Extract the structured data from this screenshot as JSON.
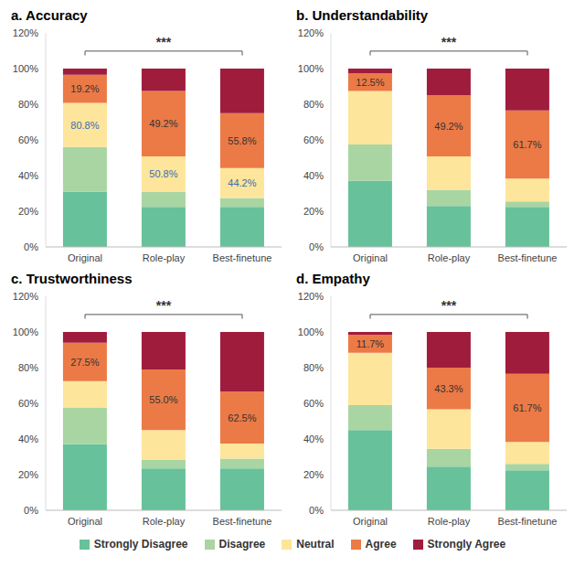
{
  "chart_data": [
    {
      "type": "bar",
      "title": "a. Accuracy",
      "stacked": true,
      "grid": false,
      "categories": [
        "Original",
        "Role-play",
        "Best-finetune"
      ],
      "ylim": [
        0,
        120
      ],
      "yticks": [
        {
          "value": 0,
          "label": "0%"
        },
        {
          "value": 20,
          "label": "20%"
        },
        {
          "value": 40,
          "label": "40%"
        },
        {
          "value": 60,
          "label": "60%"
        },
        {
          "value": 80,
          "label": "80%"
        },
        {
          "value": 100,
          "label": "100%"
        },
        {
          "value": 120,
          "label": "120%"
        }
      ],
      "series": [
        {
          "name": "Strongly Disagree",
          "color": "#67c19a",
          "values": [
            31,
            22.5,
            22.5
          ]
        },
        {
          "name": "Disagree",
          "color": "#a9d5a3",
          "values": [
            25,
            8.5,
            5
          ]
        },
        {
          "name": "Neutral",
          "color": "#fde59b",
          "values": [
            24.8,
            19.8,
            16.7
          ]
        },
        {
          "name": "Agree",
          "color": "#eb7a46",
          "values": [
            15.7,
            36.7,
            30.8
          ]
        },
        {
          "name": "Strongly Agree",
          "color": "#a01c3d",
          "values": [
            3.5,
            12.5,
            25
          ]
        }
      ],
      "annotations": [
        {
          "text": "19.2%",
          "category": "Original",
          "series": "Agree",
          "color": "#333333"
        },
        {
          "text": "49.2%",
          "category": "Role-play",
          "series": "Agree",
          "color": "#333333"
        },
        {
          "text": "55.8%",
          "category": "Best-finetune",
          "series": "Agree",
          "color": "#333333"
        },
        {
          "text": "80.8%",
          "category": "Original",
          "series": "Neutral",
          "color": "#3b6db3"
        },
        {
          "text": "50.8%",
          "category": "Role-play",
          "series": "Neutral",
          "color": "#3b6db3"
        },
        {
          "text": "44.2%",
          "category": "Best-finetune",
          "series": "Neutral",
          "color": "#3b6db3"
        }
      ],
      "significance": {
        "text": "***",
        "from": "Original",
        "to": "Best-finetune"
      }
    },
    {
      "type": "bar",
      "title": "b. Understandability",
      "stacked": true,
      "grid": false,
      "categories": [
        "Original",
        "Role-play",
        "Best-finetune"
      ],
      "ylim": [
        0,
        120
      ],
      "yticks": [
        {
          "value": 0,
          "label": "0%"
        },
        {
          "value": 20,
          "label": "20%"
        },
        {
          "value": 40,
          "label": "40%"
        },
        {
          "value": 60,
          "label": "60%"
        },
        {
          "value": 80,
          "label": "80%"
        },
        {
          "value": 100,
          "label": "100%"
        },
        {
          "value": 120,
          "label": "120%"
        }
      ],
      "series": [
        {
          "name": "Strongly Disagree",
          "color": "#67c19a",
          "values": [
            37,
            23,
            22.5
          ]
        },
        {
          "name": "Disagree",
          "color": "#a9d5a3",
          "values": [
            20.5,
            9,
            3
          ]
        },
        {
          "name": "Neutral",
          "color": "#fde59b",
          "values": [
            30,
            18.8,
            12.8
          ]
        },
        {
          "name": "Agree",
          "color": "#eb7a46",
          "values": [
            10,
            34.2,
            38.2
          ]
        },
        {
          "name": "Strongly Agree",
          "color": "#a01c3d",
          "values": [
            2.5,
            15,
            23.5
          ]
        }
      ],
      "annotations": [
        {
          "text": "12.5%",
          "category": "Original",
          "series": "Agree",
          "color": "#333333"
        },
        {
          "text": "49.2%",
          "category": "Role-play",
          "series": "Agree",
          "color": "#333333"
        },
        {
          "text": "61.7%",
          "category": "Best-finetune",
          "series": "Agree",
          "color": "#333333"
        }
      ],
      "significance": {
        "text": "***",
        "from": "Original",
        "to": "Best-finetune"
      }
    },
    {
      "type": "bar",
      "title": "c. Trustworthiness",
      "stacked": true,
      "grid": false,
      "categories": [
        "Original",
        "Role-play",
        "Best-finetune"
      ],
      "ylim": [
        0,
        120
      ],
      "yticks": [
        {
          "value": 0,
          "label": "0%"
        },
        {
          "value": 20,
          "label": "20%"
        },
        {
          "value": 40,
          "label": "40%"
        },
        {
          "value": 60,
          "label": "60%"
        },
        {
          "value": 80,
          "label": "80%"
        },
        {
          "value": 100,
          "label": "100%"
        },
        {
          "value": 120,
          "label": "120%"
        }
      ],
      "series": [
        {
          "name": "Strongly Disagree",
          "color": "#67c19a",
          "values": [
            37,
            23.5,
            23.5
          ]
        },
        {
          "name": "Disagree",
          "color": "#a9d5a3",
          "values": [
            20.5,
            5,
            5.5
          ]
        },
        {
          "name": "Neutral",
          "color": "#fde59b",
          "values": [
            15,
            16.5,
            8.5
          ]
        },
        {
          "name": "Agree",
          "color": "#eb7a46",
          "values": [
            21.5,
            34,
            29
          ]
        },
        {
          "name": "Strongly Agree",
          "color": "#a01c3d",
          "values": [
            6,
            21,
            33.5
          ]
        }
      ],
      "annotations": [
        {
          "text": "27.5%",
          "category": "Original",
          "series": "Agree",
          "color": "#333333"
        },
        {
          "text": "55.0%",
          "category": "Role-play",
          "series": "Agree",
          "color": "#333333"
        },
        {
          "text": "62.5%",
          "category": "Best-finetune",
          "series": "Agree",
          "color": "#333333"
        }
      ],
      "significance": {
        "text": "***",
        "from": "Original",
        "to": "Best-finetune"
      }
    },
    {
      "type": "bar",
      "title": "d. Empathy",
      "stacked": true,
      "grid": false,
      "categories": [
        "Original",
        "Role-play",
        "Best-finetune"
      ],
      "ylim": [
        0,
        120
      ],
      "yticks": [
        {
          "value": 0,
          "label": "0%"
        },
        {
          "value": 20,
          "label": "20%"
        },
        {
          "value": 40,
          "label": "40%"
        },
        {
          "value": 60,
          "label": "60%"
        },
        {
          "value": 80,
          "label": "80%"
        },
        {
          "value": 100,
          "label": "100%"
        },
        {
          "value": 120,
          "label": "120%"
        }
      ],
      "series": [
        {
          "name": "Strongly Disagree",
          "color": "#67c19a",
          "values": [
            45,
            24.5,
            22.5
          ]
        },
        {
          "name": "Disagree",
          "color": "#a9d5a3",
          "values": [
            14,
            10,
            3.5
          ]
        },
        {
          "name": "Neutral",
          "color": "#fde59b",
          "values": [
            29.3,
            22.2,
            12.3
          ]
        },
        {
          "name": "Agree",
          "color": "#eb7a46",
          "values": [
            10.2,
            23.3,
            38.2
          ]
        },
        {
          "name": "Strongly Agree",
          "color": "#a01c3d",
          "values": [
            1.5,
            20,
            23.5
          ]
        }
      ],
      "annotations": [
        {
          "text": "11.7%",
          "category": "Original",
          "series": "Agree",
          "color": "#333333"
        },
        {
          "text": "43.3%",
          "category": "Role-play",
          "series": "Agree",
          "color": "#333333"
        },
        {
          "text": "61.7%",
          "category": "Best-finetune",
          "series": "Agree",
          "color": "#333333"
        }
      ],
      "significance": {
        "text": "***",
        "from": "Original",
        "to": "Best-finetune"
      }
    }
  ]
}
